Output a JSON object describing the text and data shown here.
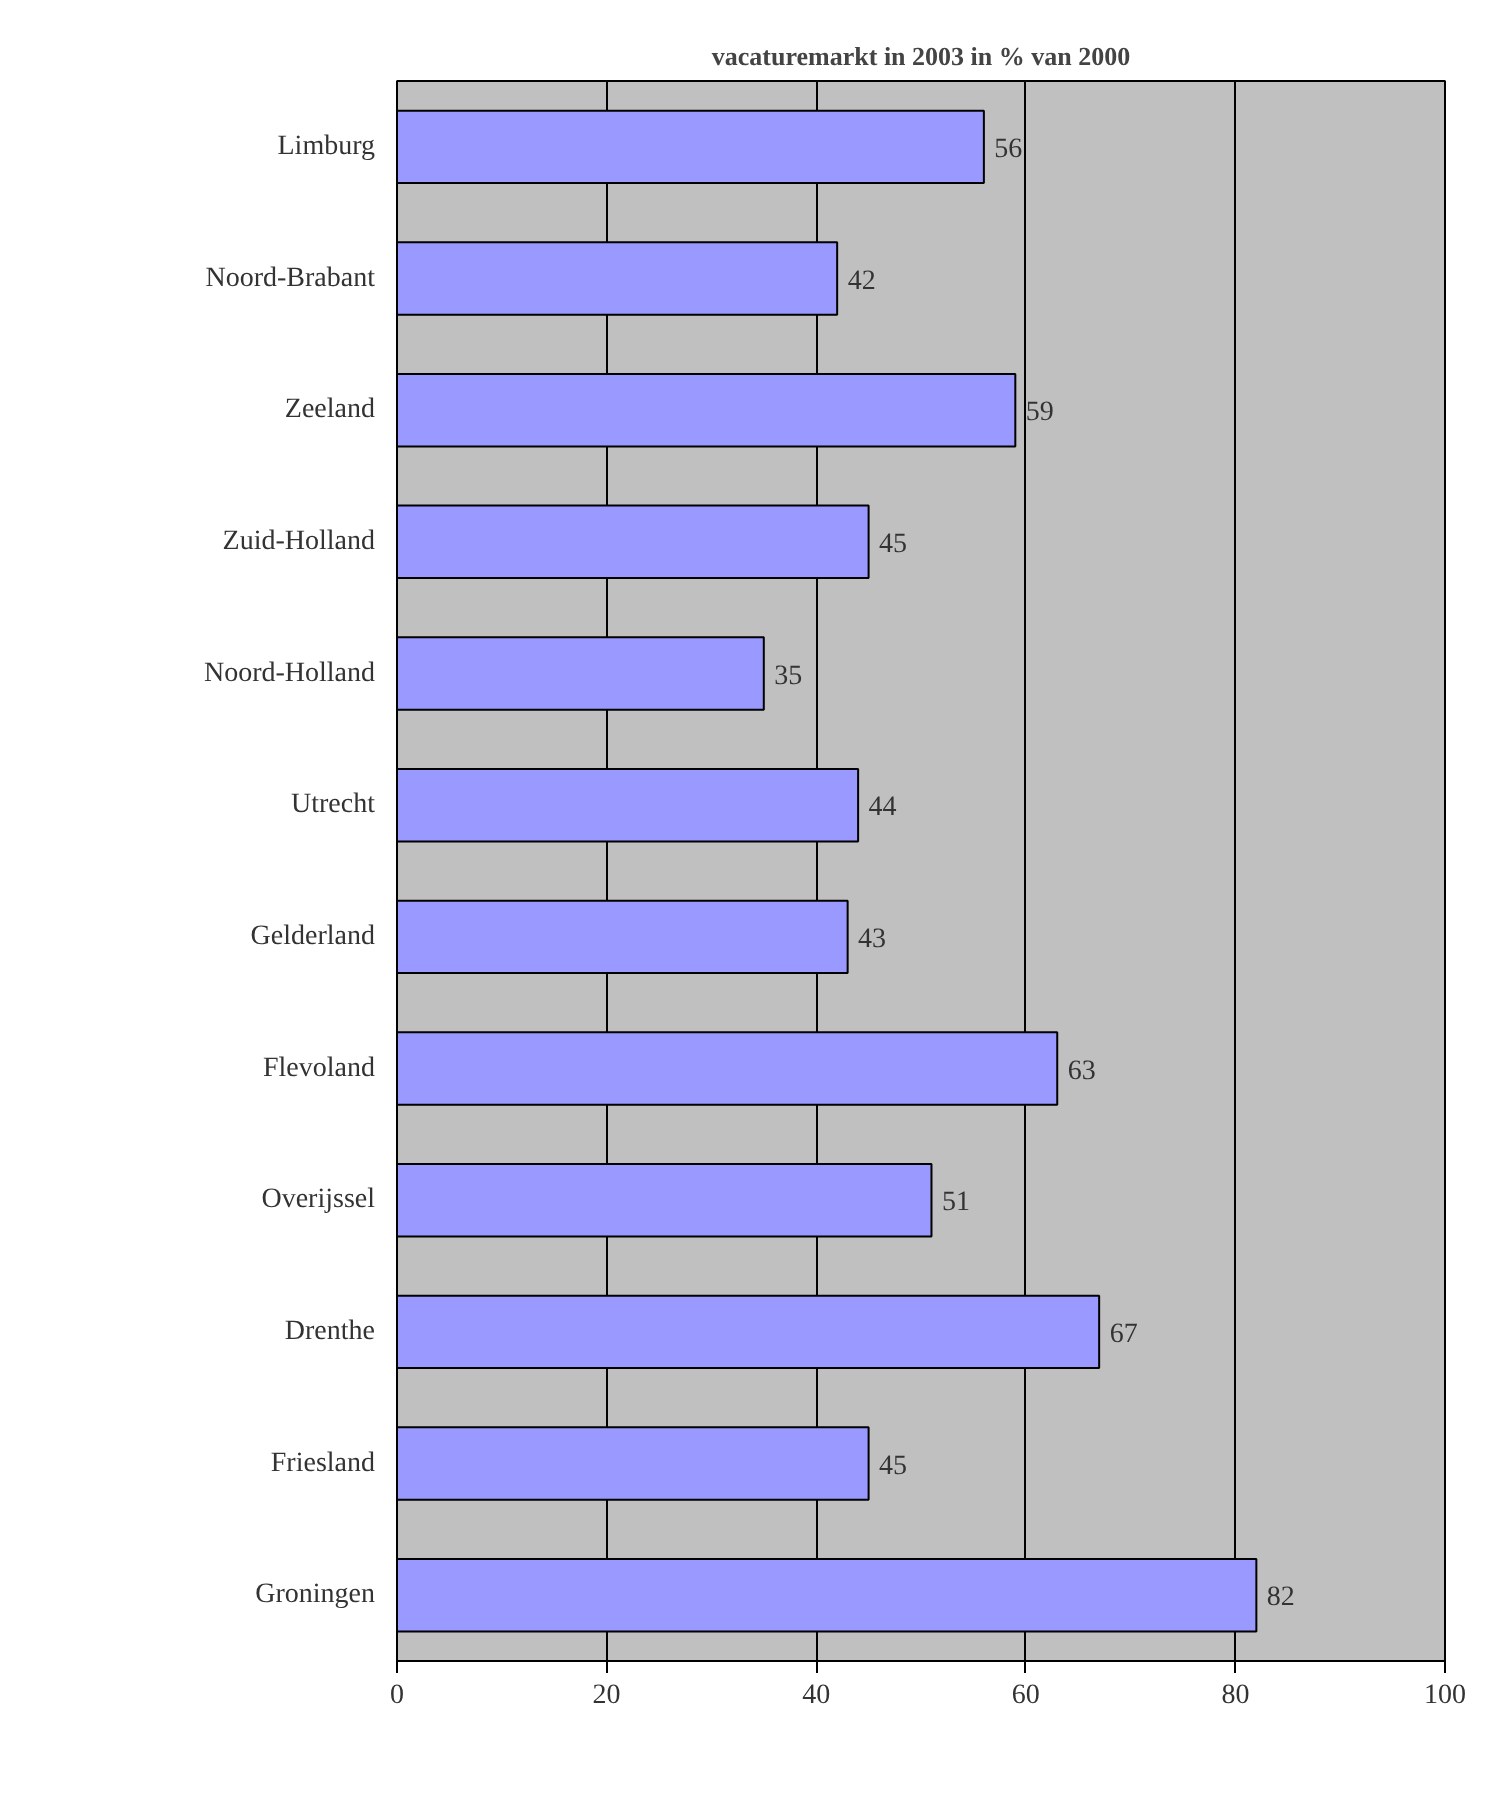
{
  "chart_data": {
    "type": "bar",
    "orientation": "horizontal",
    "title": "vacaturemarkt in 2003 in % van 2000",
    "categories": [
      "Limburg",
      "Noord-Brabant",
      "Zeeland",
      "Zuid-Holland",
      "Noord-Holland",
      "Utrecht",
      "Gelderland",
      "Flevoland",
      "Overijssel",
      "Drenthe",
      "Friesland",
      "Groningen"
    ],
    "values": [
      56,
      42,
      59,
      45,
      35,
      44,
      43,
      63,
      51,
      67,
      45,
      82
    ],
    "color": "#9999ff",
    "xlim": [
      0,
      100
    ],
    "xticks": [
      0,
      20,
      40,
      60,
      80,
      100
    ],
    "grid": "x",
    "data_labels": true
  }
}
